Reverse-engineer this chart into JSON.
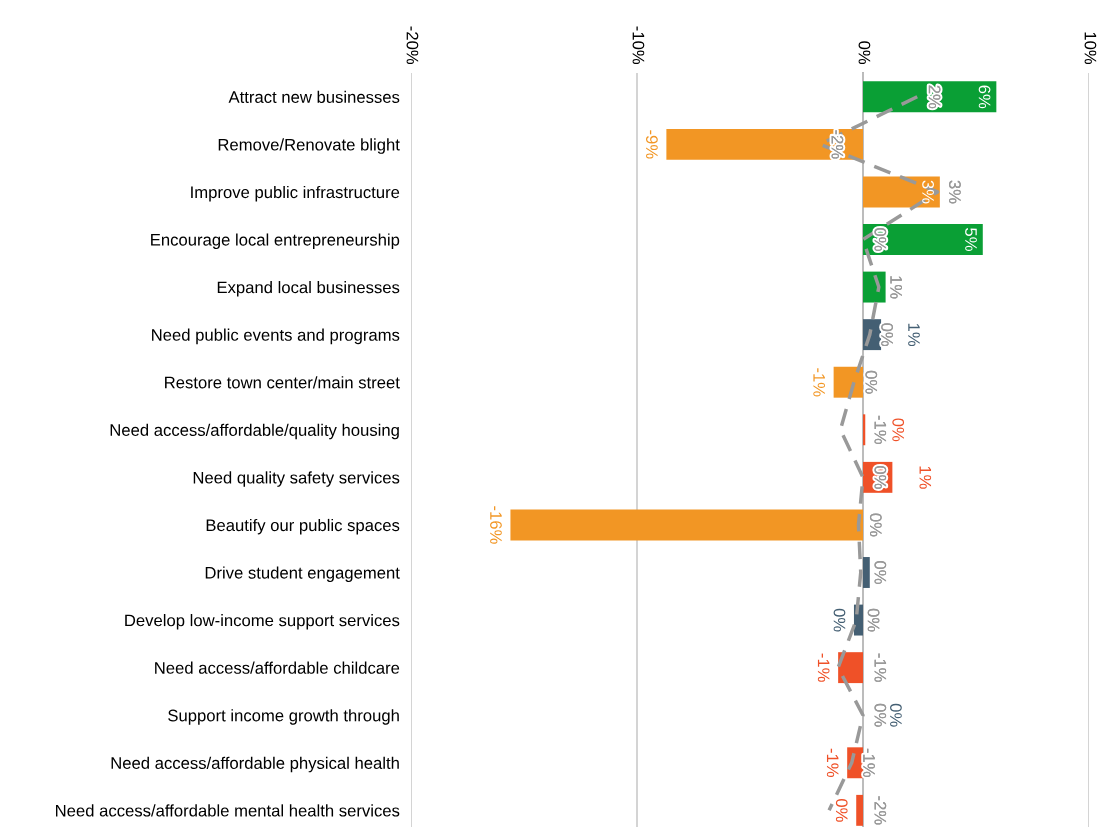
{
  "chart_data": {
    "type": "bar",
    "orientation": "horizontal",
    "categories": [
      "Attract new businesses",
      "Remove/Renovate blight",
      "Improve public infrastructure",
      "Encourage local entrepreneurship",
      "Expand local businesses",
      "Need public events and programs",
      "Restore town center/main street",
      "Need access/affordable/quality housing",
      "Need quality safety services",
      "Beautify our public spaces",
      "Drive student engagement",
      "Develop low-income support services",
      "Need access/affordable childcare",
      "Support income growth through",
      "Need access/affordable physical health",
      "Need access/affordable mental health services"
    ],
    "series": [
      {
        "type": "bar",
        "values": [
          5.9,
          -8.7,
          3.4,
          5.3,
          1.0,
          0.8,
          -1.3,
          0.1,
          1.3,
          -15.6,
          0.3,
          -0.4,
          -1.1,
          0.0,
          -0.7,
          -0.3
        ],
        "colors": [
          "#0a9f35",
          "#f29624",
          "#f29624",
          "#0a9f35",
          "#0a9f35",
          "#445f73",
          "#f29624",
          "#ef5128",
          "#ef5128",
          "#f29624",
          "#445f73",
          "#445f73",
          "#ef5128",
          "#445f73",
          "#ef5128",
          "#ef5128"
        ],
        "value_labels": [
          "6%",
          "-9%",
          "3%",
          "5%",
          null,
          "1%",
          "-1%",
          "0%",
          "1%",
          "-16%",
          null,
          "0%",
          "-1%",
          "0%",
          "-1%",
          "0%"
        ]
      },
      {
        "type": "line",
        "color": "#999999",
        "line_style": "dashed",
        "marker": "none",
        "values": [
          2.4,
          -1.9,
          3.3,
          0.0,
          0.7,
          0.3,
          -0.4,
          -1.0,
          0.0,
          -0.2,
          -0.1,
          -0.3,
          -1.1,
          0.0,
          -0.5,
          -1.5
        ],
        "value_labels": [
          "2%",
          "-2%",
          "3%",
          "0%",
          "1%",
          "0%",
          "0%",
          "-1%",
          "0%",
          "0%",
          "0%",
          "0%",
          "-1%",
          "0%",
          "-1%",
          "-2%"
        ]
      }
    ],
    "xlim": [
      -20,
      10
    ],
    "xticks": [
      {
        "value": -20,
        "label": "-20%"
      },
      {
        "value": -10,
        "label": "-10%"
      },
      {
        "value": 0,
        "label": "0%"
      },
      {
        "value": 10,
        "label": "10%"
      }
    ],
    "grid": "x",
    "tick_labels": "x"
  }
}
